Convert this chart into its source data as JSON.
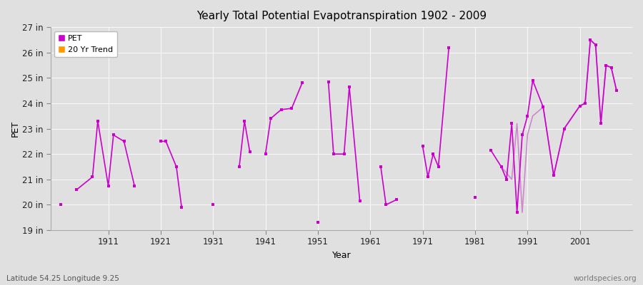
{
  "title": "Yearly Total Potential Evapotranspiration 1902 - 2009",
  "xlabel": "Year",
  "ylabel": "PET",
  "footnote_left": "Latitude 54.25 Longitude 9.25",
  "footnote_right": "worldspecies.org",
  "bg_color": "#e0e0e0",
  "line_color": "#cc00cc",
  "trend_color": "#cc88cc",
  "ylim": [
    19,
    27
  ],
  "ytick_values": [
    19,
    20,
    21,
    22,
    23,
    24,
    25,
    26,
    27
  ],
  "ytick_labels": [
    "19 in",
    "20 in",
    "21 in",
    "22 in",
    "23 in",
    "24 in",
    "25 in",
    "26 in",
    "27 in"
  ],
  "xtick_years": [
    1911,
    1921,
    1931,
    1941,
    1951,
    1961,
    1971,
    1981,
    1991,
    2001
  ],
  "xlim": [
    1900,
    2011
  ],
  "years": [
    1902,
    1905,
    1908,
    1909,
    1911,
    1912,
    1914,
    1916,
    1921,
    1922,
    1924,
    1925,
    1931,
    1936,
    1937,
    1938,
    1941,
    1942,
    1944,
    1946,
    1948,
    1951,
    1953,
    1954,
    1956,
    1957,
    1959,
    1963,
    1964,
    1966,
    1971,
    1972,
    1973,
    1974,
    1976,
    1981,
    1984,
    1986,
    1987,
    1988,
    1989,
    1990,
    1991,
    1992,
    1994,
    1996,
    1998,
    2001,
    2002,
    2003,
    2004,
    2005,
    2006,
    2007,
    2008
  ],
  "values": [
    20.0,
    20.6,
    21.1,
    23.3,
    20.75,
    22.75,
    22.5,
    20.75,
    22.5,
    22.5,
    21.5,
    19.9,
    20.0,
    21.5,
    23.3,
    22.1,
    22.0,
    23.4,
    23.75,
    23.8,
    24.8,
    19.3,
    24.85,
    22.0,
    22.0,
    24.65,
    20.15,
    21.5,
    20.0,
    20.2,
    22.3,
    21.1,
    22.0,
    21.5,
    26.2,
    20.3,
    22.15,
    21.5,
    21.0,
    23.2,
    19.7,
    22.75,
    23.5,
    24.9,
    23.85,
    21.15,
    23.0,
    23.9,
    24.0,
    26.5,
    26.3,
    23.2,
    25.5,
    25.4,
    24.5
  ],
  "segments": [
    [
      1905,
      1908,
      1909,
      1911,
      1912,
      1914,
      1916
    ],
    [
      1921,
      1922,
      1924,
      1925
    ],
    [
      1936,
      1937,
      1938
    ],
    [
      1941,
      1942,
      1944,
      1946,
      1948
    ],
    [
      1953,
      1954,
      1956,
      1957,
      1959
    ],
    [
      1963,
      1964,
      1966
    ],
    [
      1971,
      1972,
      1973,
      1974,
      1976
    ],
    [
      1984,
      1986,
      1987,
      1988,
      1989,
      1990,
      1991,
      1992,
      1994,
      1996,
      1998,
      2001,
      2002,
      2003,
      2004,
      2005,
      2006,
      2007,
      2008
    ]
  ],
  "trend_years": [
    1986,
    1988,
    1989,
    1990,
    1991,
    1992,
    1994,
    1996,
    1998,
    2001,
    2002,
    2003,
    2004,
    2005,
    2006,
    2007,
    2008
  ],
  "trend_values": [
    21.5,
    21.0,
    23.2,
    19.7,
    22.75,
    23.5,
    23.85,
    21.15,
    23.0,
    23.9,
    24.0,
    26.5,
    26.3,
    23.2,
    25.5,
    25.4,
    24.5
  ]
}
